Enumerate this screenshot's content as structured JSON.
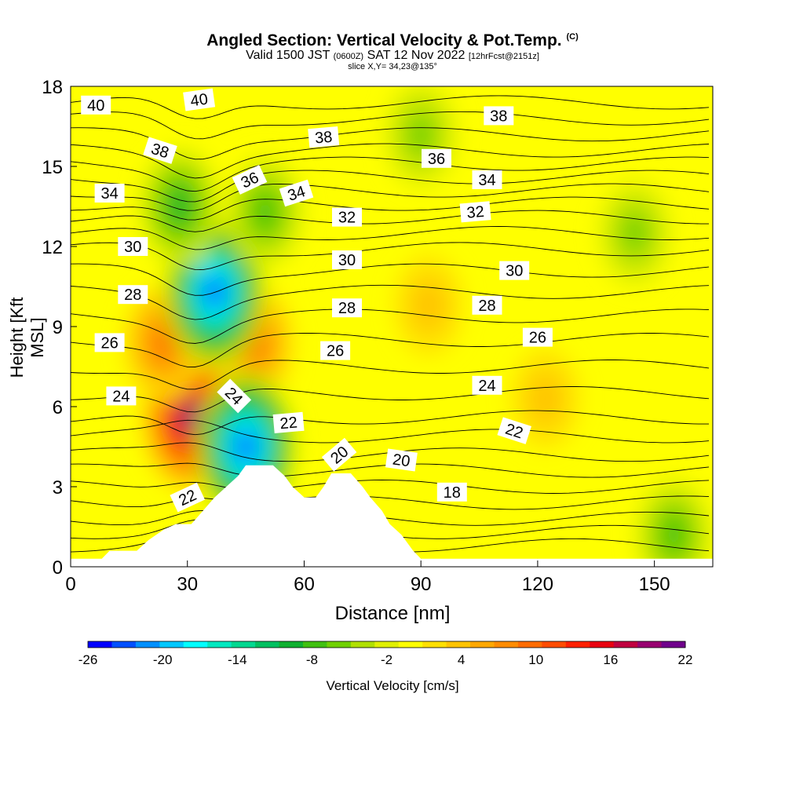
{
  "title": "Angled Section: Vertical Velocity & Pot.Temp.",
  "title_unit": "(C)",
  "subtitle_pre": "Valid 1500 JST",
  "subtitle_utc": "(0600Z)",
  "subtitle_date": "SAT 12 Nov 2022",
  "subtitle_fcst": "[12hrFcst@2151z]",
  "slice_text": "slice X,Y= 34,23@135°",
  "chart_data": {
    "type": "heatmap",
    "xlabel": "Distance [nm]",
    "ylabel": "Height [Kft MSL]",
    "xlim": [
      0,
      165
    ],
    "ylim": [
      0,
      18
    ],
    "x_ticks": [
      0,
      30,
      60,
      90,
      120,
      150
    ],
    "y_ticks": [
      0,
      3,
      6,
      9,
      12,
      15,
      18
    ],
    "colorbar": {
      "title": "Vertical Velocity [cm/s]",
      "min": -26,
      "max": 22,
      "labels": [
        -26,
        -20,
        -14,
        -8,
        -2,
        4,
        10,
        16,
        22
      ],
      "colors": [
        "#0000ff",
        "#0050ff",
        "#0090ff",
        "#00c8ff",
        "#00ffff",
        "#00e8c0",
        "#00d890",
        "#00c060",
        "#10b030",
        "#40c010",
        "#70d000",
        "#b0e000",
        "#e0f000",
        "#ffff00",
        "#ffe000",
        "#ffc400",
        "#ffa800",
        "#ff8c00",
        "#ff6c00",
        "#ff4c00",
        "#ff2000",
        "#e80010",
        "#c00040",
        "#980070",
        "#70008c"
      ]
    },
    "velocity_centers": [
      {
        "x": 31,
        "y": 5.6,
        "value": 22
      },
      {
        "x": 24,
        "y": 8.4,
        "value": 10
      },
      {
        "x": 47,
        "y": 8.4,
        "value": 10
      },
      {
        "x": 37,
        "y": 10.3,
        "value": -26
      },
      {
        "x": 45,
        "y": 4.5,
        "value": -26
      },
      {
        "x": 28,
        "y": 13.5,
        "value": -10
      },
      {
        "x": 50,
        "y": 13.3,
        "value": -8
      },
      {
        "x": 122,
        "y": 6.3,
        "value": 4
      },
      {
        "x": 92,
        "y": 9.8,
        "value": 3
      },
      {
        "x": 145,
        "y": 12.5,
        "value": -6
      },
      {
        "x": 155,
        "y": 1.2,
        "value": -8
      },
      {
        "x": 90,
        "y": 16.2,
        "value": -5
      }
    ],
    "terrain": [
      [
        0,
        0.3
      ],
      [
        8,
        0.3
      ],
      [
        10,
        0.6
      ],
      [
        17,
        0.6
      ],
      [
        20,
        1.0
      ],
      [
        24,
        1.4
      ],
      [
        27,
        1.6
      ],
      [
        31,
        1.6
      ],
      [
        34,
        2.1
      ],
      [
        37,
        2.6
      ],
      [
        40,
        3.0
      ],
      [
        43,
        3.4
      ],
      [
        45,
        3.8
      ],
      [
        52,
        3.8
      ],
      [
        55,
        3.4
      ],
      [
        57,
        3.0
      ],
      [
        60,
        2.6
      ],
      [
        63,
        2.6
      ],
      [
        65,
        3.0
      ],
      [
        67,
        3.5
      ],
      [
        72,
        3.5
      ],
      [
        75,
        3.0
      ],
      [
        77,
        2.6
      ],
      [
        80,
        2.1
      ],
      [
        82,
        1.6
      ],
      [
        85,
        1.2
      ],
      [
        88,
        0.6
      ],
      [
        90,
        0.3
      ],
      [
        165,
        0.3
      ]
    ],
    "theta_contour_labels": [
      {
        "text": "40",
        "x": 6.5,
        "y": 17.3,
        "angle": 0
      },
      {
        "text": "40",
        "x": 33,
        "y": 17.5,
        "angle": -8
      },
      {
        "text": "38",
        "x": 23,
        "y": 15.6,
        "angle": 18
      },
      {
        "text": "38",
        "x": 65,
        "y": 16.1,
        "angle": -5
      },
      {
        "text": "38",
        "x": 110,
        "y": 16.9,
        "angle": 0
      },
      {
        "text": "36",
        "x": 46,
        "y": 14.5,
        "angle": -25
      },
      {
        "text": "36",
        "x": 94,
        "y": 15.3,
        "angle": 0
      },
      {
        "text": "34",
        "x": 10,
        "y": 14.0,
        "angle": 0
      },
      {
        "text": "34",
        "x": 58,
        "y": 14.0,
        "angle": -18
      },
      {
        "text": "34",
        "x": 107,
        "y": 14.5,
        "angle": 0
      },
      {
        "text": "32",
        "x": 71,
        "y": 13.1,
        "angle": 0
      },
      {
        "text": "32",
        "x": 104,
        "y": 13.3,
        "angle": -5
      },
      {
        "text": "30",
        "x": 16,
        "y": 12.0,
        "angle": 0
      },
      {
        "text": "30",
        "x": 71,
        "y": 11.5,
        "angle": 0
      },
      {
        "text": "30",
        "x": 114,
        "y": 11.1,
        "angle": 0
      },
      {
        "text": "28",
        "x": 16,
        "y": 10.2,
        "angle": 0
      },
      {
        "text": "28",
        "x": 71,
        "y": 9.7,
        "angle": 0
      },
      {
        "text": "28",
        "x": 107,
        "y": 9.8,
        "angle": 0
      },
      {
        "text": "26",
        "x": 10,
        "y": 8.4,
        "angle": 0
      },
      {
        "text": "26",
        "x": 68,
        "y": 8.1,
        "angle": 0
      },
      {
        "text": "26",
        "x": 120,
        "y": 8.6,
        "angle": 0
      },
      {
        "text": "24",
        "x": 13,
        "y": 6.4,
        "angle": 0
      },
      {
        "text": "24",
        "x": 42,
        "y": 6.4,
        "angle": 45
      },
      {
        "text": "24",
        "x": 107,
        "y": 6.8,
        "angle": 0
      },
      {
        "text": "22",
        "x": 56,
        "y": 5.4,
        "angle": -5
      },
      {
        "text": "22",
        "x": 114,
        "y": 5.1,
        "angle": 18
      },
      {
        "text": "22",
        "x": 30,
        "y": 2.6,
        "angle": -25
      },
      {
        "text": "20",
        "x": 69,
        "y": 4.2,
        "angle": -40
      },
      {
        "text": "20",
        "x": 85,
        "y": 4.0,
        "angle": 8
      },
      {
        "text": "18",
        "x": 98,
        "y": 2.8,
        "angle": 0
      }
    ]
  }
}
